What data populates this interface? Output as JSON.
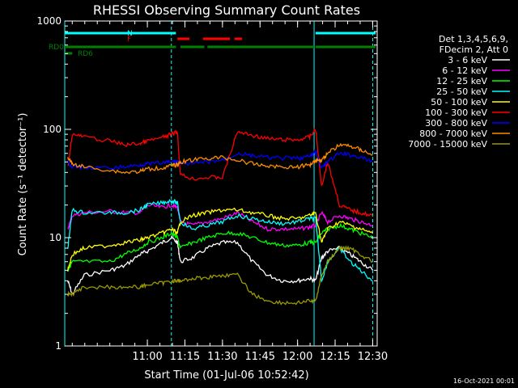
{
  "chart_data": {
    "type": "line",
    "title": "RHESSI Observing Summary Count Rates",
    "xlabel": "Start Time (01-Jul-06 10:52:42)",
    "ylabel": "Count Rate (s⁻¹ detector⁻¹)",
    "footer": "16-Oct-2021 00:01",
    "yscale": "log",
    "ylim": [
      1,
      1000
    ],
    "xlim_minutes": [
      10.45,
      12.53
    ],
    "y_ticks": [
      {
        "value": 1,
        "label": "1"
      },
      {
        "value": 10,
        "label": "10"
      },
      {
        "value": 100,
        "label": "100"
      },
      {
        "value": 1000,
        "label": "1000"
      }
    ],
    "x_ticks": [
      {
        "value": 11.0,
        "label": "11:00"
      },
      {
        "value": 11.25,
        "label": "11:15"
      },
      {
        "value": 11.5,
        "label": "11:30"
      },
      {
        "value": 11.75,
        "label": "11:45"
      },
      {
        "value": 12.0,
        "label": "12:00"
      },
      {
        "value": 12.25,
        "label": "12:15"
      },
      {
        "value": 12.5,
        "label": "12:30"
      }
    ],
    "legend": {
      "position": "right",
      "header": [
        "Det 1,3,4,5,6,9,",
        "FDecim 2, Att 0"
      ]
    },
    "series": [
      {
        "name": "3 - 6 keV",
        "color": "#ffffff",
        "values": [
          [
            10.47,
            4
          ],
          [
            10.5,
            3
          ],
          [
            10.58,
            4.5
          ],
          [
            10.75,
            5
          ],
          [
            10.85,
            5.5
          ],
          [
            10.95,
            7
          ],
          [
            11.0,
            7.5
          ],
          [
            11.1,
            9
          ],
          [
            11.16,
            10
          ],
          [
            11.2,
            9
          ],
          [
            11.22,
            6
          ],
          [
            11.3,
            6.5
          ],
          [
            11.4,
            8
          ],
          [
            11.5,
            9
          ],
          [
            11.6,
            9
          ],
          [
            11.7,
            6
          ],
          [
            11.8,
            4.5
          ],
          [
            11.9,
            4
          ],
          [
            12.0,
            4
          ],
          [
            12.08,
            4.2
          ],
          [
            12.12,
            4
          ],
          [
            12.16,
            6.5
          ],
          [
            12.2,
            7.5
          ],
          [
            12.28,
            8
          ],
          [
            12.35,
            7
          ],
          [
            12.42,
            6
          ],
          [
            12.5,
            5
          ]
        ]
      },
      {
        "name": "6 - 12 keV",
        "color": "#ff00ff",
        "values": [
          [
            10.47,
            12
          ],
          [
            10.5,
            16
          ],
          [
            10.58,
            17
          ],
          [
            10.75,
            17.5
          ],
          [
            10.85,
            17
          ],
          [
            10.95,
            17
          ],
          [
            11.0,
            20
          ],
          [
            11.1,
            19
          ],
          [
            11.16,
            20
          ],
          [
            11.2,
            19
          ],
          [
            11.22,
            14
          ],
          [
            11.3,
            13
          ],
          [
            11.4,
            14
          ],
          [
            11.5,
            15
          ],
          [
            11.6,
            17
          ],
          [
            11.7,
            14
          ],
          [
            11.8,
            12
          ],
          [
            11.9,
            12
          ],
          [
            12.0,
            12
          ],
          [
            12.08,
            12.5
          ],
          [
            12.12,
            13
          ],
          [
            12.16,
            17
          ],
          [
            12.2,
            14
          ],
          [
            12.28,
            16
          ],
          [
            12.35,
            15
          ],
          [
            12.42,
            14
          ],
          [
            12.5,
            13
          ]
        ]
      },
      {
        "name": "12 - 25 keV",
        "color": "#00ff00",
        "values": [
          [
            10.47,
            5
          ],
          [
            10.5,
            6
          ],
          [
            10.58,
            6
          ],
          [
            10.75,
            6
          ],
          [
            10.85,
            7
          ],
          [
            10.95,
            8
          ],
          [
            11.0,
            9
          ],
          [
            11.1,
            10
          ],
          [
            11.16,
            11
          ],
          [
            11.2,
            10
          ],
          [
            11.22,
            8
          ],
          [
            11.3,
            9
          ],
          [
            11.4,
            10
          ],
          [
            11.5,
            11
          ],
          [
            11.6,
            11
          ],
          [
            11.7,
            10
          ],
          [
            11.8,
            9
          ],
          [
            11.9,
            8.5
          ],
          [
            12.0,
            8.5
          ],
          [
            12.08,
            9
          ],
          [
            12.12,
            9
          ],
          [
            12.16,
            11
          ],
          [
            12.2,
            12
          ],
          [
            12.28,
            13
          ],
          [
            12.35,
            12
          ],
          [
            12.42,
            11
          ],
          [
            12.5,
            10
          ]
        ]
      },
      {
        "name": "25 - 50 keV",
        "color": "#00ffff",
        "values": [
          [
            10.47,
            8
          ],
          [
            10.5,
            18
          ],
          [
            10.58,
            17
          ],
          [
            10.75,
            17
          ],
          [
            10.85,
            17
          ],
          [
            10.95,
            18
          ],
          [
            11.0,
            20
          ],
          [
            11.1,
            21
          ],
          [
            11.16,
            22
          ],
          [
            11.2,
            21
          ],
          [
            11.22,
            14
          ],
          [
            11.3,
            12
          ],
          [
            11.4,
            13
          ],
          [
            11.5,
            14
          ],
          [
            11.6,
            16
          ],
          [
            11.7,
            15
          ],
          [
            11.8,
            14
          ],
          [
            11.9,
            13.5
          ],
          [
            12.0,
            14
          ],
          [
            12.08,
            15
          ],
          [
            12.12,
            15
          ],
          [
            12.16,
            4
          ],
          [
            12.2,
            6
          ],
          [
            12.28,
            8
          ],
          [
            12.35,
            6
          ],
          [
            12.42,
            5
          ],
          [
            12.5,
            4
          ]
        ]
      },
      {
        "name": "50 - 100 keV",
        "color": "#ffff00",
        "values": [
          [
            10.47,
            5
          ],
          [
            10.5,
            7
          ],
          [
            10.58,
            8
          ],
          [
            10.75,
            8.5
          ],
          [
            10.85,
            9
          ],
          [
            10.95,
            9.5
          ],
          [
            11.0,
            10
          ],
          [
            11.1,
            11
          ],
          [
            11.16,
            12
          ],
          [
            11.2,
            11
          ],
          [
            11.22,
            14
          ],
          [
            11.3,
            16
          ],
          [
            11.4,
            17
          ],
          [
            11.5,
            18
          ],
          [
            11.6,
            18
          ],
          [
            11.7,
            17
          ],
          [
            11.8,
            16
          ],
          [
            11.9,
            15
          ],
          [
            12.0,
            15
          ],
          [
            12.08,
            16
          ],
          [
            12.12,
            17
          ],
          [
            12.16,
            9
          ],
          [
            12.2,
            12
          ],
          [
            12.28,
            14
          ],
          [
            12.35,
            13
          ],
          [
            12.42,
            12
          ],
          [
            12.5,
            11
          ]
        ]
      },
      {
        "name": "100 - 300 keV",
        "color": "#ff0000",
        "values": [
          [
            10.47,
            45
          ],
          [
            10.5,
            90
          ],
          [
            10.58,
            85
          ],
          [
            10.75,
            78
          ],
          [
            10.85,
            72
          ],
          [
            10.95,
            74
          ],
          [
            11.0,
            78
          ],
          [
            11.1,
            84
          ],
          [
            11.16,
            90
          ],
          [
            11.2,
            95
          ],
          [
            11.22,
            38
          ],
          [
            11.3,
            35
          ],
          [
            11.4,
            36
          ],
          [
            11.5,
            36
          ],
          [
            11.6,
            95
          ],
          [
            11.7,
            88
          ],
          [
            11.8,
            82
          ],
          [
            11.9,
            80
          ],
          [
            12.0,
            80
          ],
          [
            12.08,
            85
          ],
          [
            12.12,
            100
          ],
          [
            12.16,
            30
          ],
          [
            12.2,
            50
          ],
          [
            12.28,
            20
          ],
          [
            12.35,
            18
          ],
          [
            12.42,
            17
          ],
          [
            12.5,
            16
          ]
        ]
      },
      {
        "name": "300 - 800 keV",
        "color": "#0000ff",
        "values": [
          [
            10.47,
            50
          ],
          [
            10.5,
            45
          ],
          [
            10.58,
            44
          ],
          [
            10.75,
            44
          ],
          [
            10.85,
            45
          ],
          [
            10.95,
            47
          ],
          [
            11.0,
            48
          ],
          [
            11.1,
            49
          ],
          [
            11.16,
            50
          ],
          [
            11.2,
            51
          ],
          [
            11.22,
            48
          ],
          [
            11.3,
            48
          ],
          [
            11.4,
            50
          ],
          [
            11.5,
            52
          ],
          [
            11.6,
            60
          ],
          [
            11.7,
            57
          ],
          [
            11.8,
            55
          ],
          [
            11.9,
            54
          ],
          [
            12.0,
            54
          ],
          [
            12.08,
            56
          ],
          [
            12.12,
            62
          ],
          [
            12.16,
            44
          ],
          [
            12.2,
            50
          ],
          [
            12.28,
            60
          ],
          [
            12.35,
            58
          ],
          [
            12.42,
            55
          ],
          [
            12.5,
            50
          ]
        ]
      },
      {
        "name": "800 - 7000 keV",
        "color": "#ff8c00",
        "values": [
          [
            10.47,
            55
          ],
          [
            10.5,
            48
          ],
          [
            10.58,
            45
          ],
          [
            10.75,
            42
          ],
          [
            10.85,
            40
          ],
          [
            10.95,
            41
          ],
          [
            11.0,
            43
          ],
          [
            11.1,
            44
          ],
          [
            11.16,
            46
          ],
          [
            11.2,
            47
          ],
          [
            11.22,
            50
          ],
          [
            11.3,
            52
          ],
          [
            11.4,
            54
          ],
          [
            11.5,
            55
          ],
          [
            11.6,
            52
          ],
          [
            11.7,
            48
          ],
          [
            11.8,
            46
          ],
          [
            11.9,
            45
          ],
          [
            12.0,
            45
          ],
          [
            12.08,
            47
          ],
          [
            12.12,
            52
          ],
          [
            12.16,
            52
          ],
          [
            12.2,
            60
          ],
          [
            12.28,
            72
          ],
          [
            12.35,
            70
          ],
          [
            12.42,
            65
          ],
          [
            12.5,
            58
          ]
        ]
      },
      {
        "name": "7000 - 15000 keV",
        "color": "#999900",
        "values": [
          [
            10.47,
            3
          ],
          [
            10.5,
            3
          ],
          [
            10.58,
            3.5
          ],
          [
            10.75,
            3.5
          ],
          [
            10.85,
            3.5
          ],
          [
            10.95,
            3.5
          ],
          [
            11.0,
            3.7
          ],
          [
            11.1,
            3.8
          ],
          [
            11.16,
            4
          ],
          [
            11.2,
            4
          ],
          [
            11.22,
            4
          ],
          [
            11.3,
            4.2
          ],
          [
            11.4,
            4.3
          ],
          [
            11.5,
            4.5
          ],
          [
            11.6,
            4.5
          ],
          [
            11.7,
            3
          ],
          [
            11.8,
            2.6
          ],
          [
            11.9,
            2.5
          ],
          [
            12.0,
            2.5
          ],
          [
            12.08,
            2.6
          ],
          [
            12.12,
            2.6
          ],
          [
            12.16,
            4.5
          ],
          [
            12.2,
            6
          ],
          [
            12.28,
            8
          ],
          [
            12.35,
            8
          ],
          [
            12.42,
            7
          ],
          [
            12.5,
            6
          ]
        ]
      }
    ],
    "flags": [
      {
        "label": "N",
        "color": "#00ffff",
        "segments": [
          [
            10.45,
            11.19
          ],
          [
            12.12,
            12.52
          ]
        ]
      },
      {
        "label": "F",
        "color": "#ff0000",
        "segments": [
          [
            11.2,
            11.28
          ],
          [
            11.37,
            11.55
          ],
          [
            11.58,
            11.63
          ]
        ]
      },
      {
        "label": "RD0",
        "color": "#008000",
        "segments": [
          [
            10.45,
            11.19
          ],
          [
            11.22,
            11.38
          ],
          [
            11.4,
            12.11
          ],
          [
            12.12,
            12.52
          ]
        ]
      },
      {
        "label": "RD6",
        "color": "#008000",
        "segments": [
          [
            10.45,
            10.5
          ]
        ]
      }
    ],
    "saa_boundaries": [
      10.45,
      12.11
    ],
    "dashed_markers": [
      11.16,
      12.5
    ]
  }
}
